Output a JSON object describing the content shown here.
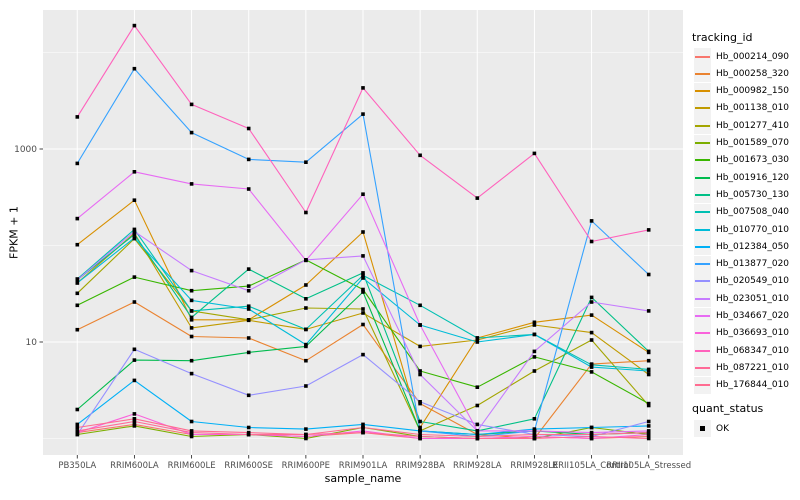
{
  "chart": {
    "y_axis_title": "FPKM + 1",
    "x_axis_title": "sample_name"
  },
  "legend": {
    "tracking_title": "tracking_id",
    "quant_title": "quant_status",
    "quant_items": [
      {
        "label": "OK",
        "marker": "black-square"
      }
    ]
  },
  "chart_data": {
    "type": "line",
    "title": "",
    "xlabel": "sample_name",
    "ylabel": "FPKM + 1",
    "y_scale": "log10",
    "ylim": [
      1,
      30000
    ],
    "grid": true,
    "legend_position": "right",
    "panel_background": "#EBEBEB",
    "gridline_color": "#FFFFFF",
    "tick_label_color": "#4D4D4D",
    "point_color": "#000000",
    "point_shape": "square",
    "y_ticks": [
      {
        "label": "1000",
        "value": 1000
      },
      {
        "label": "10",
        "value": 10
      }
    ],
    "minor_gridline_values": [
      1,
      100,
      10000
    ],
    "x_categories": [
      "PB350LA",
      "RRIM600LA",
      "RRIM600LE",
      "RRIM600SE",
      "RRIM600PE",
      "RRIM901LA",
      "RRIM928BA",
      "RRIM928LA",
      "RRIM928LE",
      "RRII105LA_Control",
      "RRII105LA_Stressed"
    ],
    "series": [
      {
        "name": "Hb_000214_090",
        "color": "#F8766D",
        "values": [
          1.15,
          1.4,
          1.1,
          1.1,
          1.05,
          1.15,
          1.0,
          1.0,
          1.05,
          1.0,
          1.05
        ]
      },
      {
        "name": "Hb_000258_320",
        "color": "#EA8331",
        "values": [
          13.4,
          26,
          11.4,
          11,
          6.4,
          15.2,
          2.3,
          1.1,
          1.0,
          5.9,
          6.4
        ]
      },
      {
        "name": "Hb_000982_150",
        "color": "#D89000",
        "values": [
          102,
          295,
          17,
          17,
          39,
          138,
          1.3,
          11,
          16,
          19,
          7.8
        ]
      },
      {
        "name": "Hb_001138_010",
        "color": "#C09B00",
        "values": [
          41,
          134,
          14,
          16.8,
          13.5,
          20,
          9,
          10.5,
          15,
          12.5,
          4.6
        ]
      },
      {
        "name": "Hb_001277_410",
        "color": "#A3A500",
        "values": [
          32,
          118,
          21,
          17,
          22.5,
          22,
          1.2,
          2.2,
          5,
          10.5,
          2.2
        ]
      },
      {
        "name": "Hb_001589_070",
        "color": "#7CAE00",
        "values": [
          1.1,
          1.35,
          1.05,
          1.1,
          1.0,
          1.3,
          1.05,
          1.0,
          1.0,
          1.3,
          1.1
        ]
      },
      {
        "name": "Hb_001673_030",
        "color": "#39B600",
        "values": [
          24,
          47,
          34,
          38,
          71,
          35,
          5,
          3.4,
          7,
          4.9,
          2.3
        ]
      },
      {
        "name": "Hb_001916_120",
        "color": "#00BB4E",
        "values": [
          2.0,
          6.5,
          6.4,
          7.8,
          9.0,
          33,
          1.2,
          1.1,
          1.2,
          1.1,
          1.15
        ]
      },
      {
        "name": "Hb_005730_130",
        "color": "#00C087",
        "values": [
          44,
          130,
          18,
          57,
          28,
          52,
          1.5,
          1.2,
          1.6,
          29,
          8.0
        ]
      },
      {
        "name": "Hb_007508_040",
        "color": "#00C0B2",
        "values": [
          45,
          147,
          21,
          23.5,
          13.5,
          49,
          24,
          11,
          12,
          5.8,
          5.2
        ]
      },
      {
        "name": "Hb_010770_010",
        "color": "#00BCD8",
        "values": [
          41,
          120,
          27,
          22,
          9.4,
          46,
          15,
          10,
          12,
          5.5,
          5.0
        ]
      },
      {
        "name": "Hb_012384_050",
        "color": "#00B0F6",
        "values": [
          1.4,
          4.0,
          1.5,
          1.3,
          1.25,
          1.4,
          1.2,
          1.1,
          1.25,
          1.3,
          1.35
        ]
      },
      {
        "name": "Hb_013877_020",
        "color": "#35A2FF",
        "values": [
          710,
          6800,
          1480,
          780,
          730,
          2300,
          1.2,
          1.05,
          1.2,
          180,
          50
        ]
      },
      {
        "name": "Hb_020549_010",
        "color": "#9590FF",
        "values": [
          1.1,
          8.4,
          4.7,
          2.8,
          3.5,
          7.4,
          2.4,
          1.4,
          1.1,
          1.05,
          1.5
        ]
      },
      {
        "name": "Hb_023051_010",
        "color": "#C77CFF",
        "values": [
          44,
          140,
          55,
          34,
          71,
          78,
          4.6,
          1.2,
          8,
          26,
          21
        ]
      },
      {
        "name": "Hb_034667_020",
        "color": "#E76BF3",
        "values": [
          190,
          580,
          435,
          385,
          70,
          340,
          15,
          1.2,
          1.2,
          1.15,
          1.2
        ]
      },
      {
        "name": "Hb_036693_010",
        "color": "#FA62DB",
        "values": [
          1.15,
          1.8,
          1.1,
          1.1,
          1.05,
          1.2,
          1.0,
          1.0,
          1.05,
          1.0,
          1.1
        ]
      },
      {
        "name": "Hb_068347_010",
        "color": "#FF62BC",
        "values": [
          2150,
          19000,
          2900,
          1630,
          220,
          4300,
          860,
          310,
          900,
          110,
          145
        ]
      },
      {
        "name": "Hb_087221_010",
        "color": "#FF6A98",
        "values": [
          1.2,
          1.5,
          1.15,
          1.1,
          1.1,
          1.15,
          1.05,
          1.0,
          1.0,
          1.05,
          1.0
        ]
      },
      {
        "name": "Hb_176844_010",
        "color": "#FF6C91",
        "values": [
          1.3,
          1.6,
          1.2,
          1.15,
          1.1,
          1.3,
          1.1,
          1.05,
          1.1,
          1.1,
          1.15
        ]
      }
    ]
  }
}
